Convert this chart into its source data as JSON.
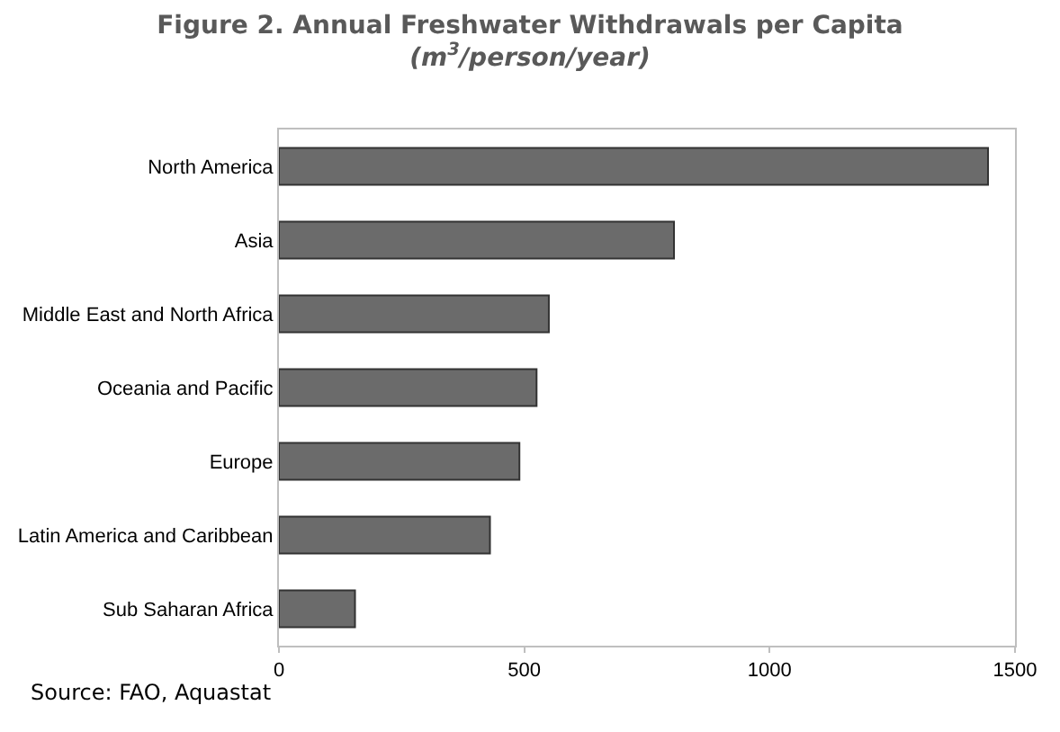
{
  "chart_data": {
    "type": "bar",
    "orientation": "horizontal",
    "title": "Figure 2. Annual Freshwater Withdrawals per Capita",
    "subtitle": "(m$^{3}$/person/year)",
    "categories": [
      "North America",
      "Asia",
      "Middle East and North Africa",
      "Oceania and Pacific",
      "Europe",
      "Latin America and Caribbean",
      "Sub Saharan Africa"
    ],
    "values": [
      1445,
      805,
      550,
      525,
      490,
      430,
      155
    ],
    "color": "#6b6b6b",
    "xlim": [
      0,
      1500
    ],
    "xticks": [
      0,
      500,
      1000,
      1500
    ],
    "annotations": [
      "Source: FAO, Aquastat"
    ]
  }
}
